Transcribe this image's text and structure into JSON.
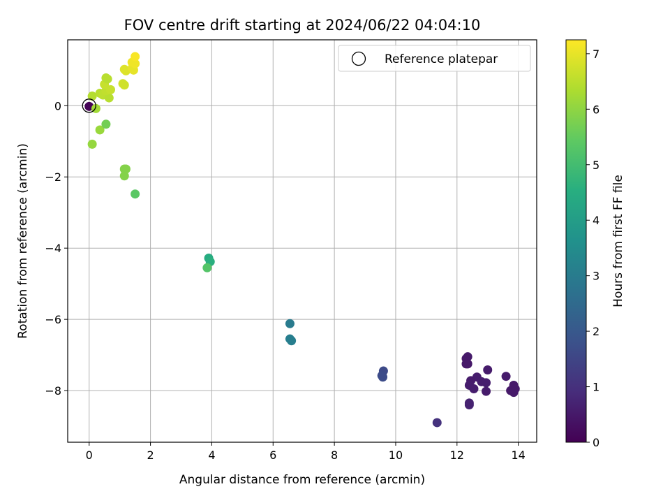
{
  "chart_data": {
    "type": "scatter",
    "title": "FOV centre drift starting at 2024/06/22 04:04:10",
    "xlabel": "Angular distance from reference (arcmin)",
    "ylabel": "Rotation from reference (arcmin)",
    "xlim": [
      -0.7,
      14.6
    ],
    "ylim": [
      -9.45,
      1.85
    ],
    "xticks": [
      0,
      2,
      4,
      6,
      8,
      10,
      12,
      14
    ],
    "yticks": [
      -8,
      -6,
      -4,
      -2,
      0
    ],
    "grid": true,
    "colormap": "viridis",
    "colorbar": {
      "label": "Hours from first FF file",
      "min": 0,
      "max": 7.25,
      "ticks": [
        0,
        1,
        2,
        3,
        4,
        5,
        6,
        7
      ]
    },
    "legend": {
      "position": "top-right",
      "entries": [
        {
          "label": "Reference platepar",
          "marker": "open-circle"
        }
      ]
    },
    "reference_point": {
      "x": 0,
      "y": 0
    },
    "points": [
      {
        "x": 0.0,
        "y": -0.02,
        "c": 0.05
      },
      {
        "x": 12.35,
        "y": -7.05,
        "c": 0.55
      },
      {
        "x": 12.3,
        "y": -7.1,
        "c": 0.5
      },
      {
        "x": 12.35,
        "y": -7.25,
        "c": 0.5
      },
      {
        "x": 12.3,
        "y": -7.25,
        "c": 0.5
      },
      {
        "x": 13.0,
        "y": -7.42,
        "c": 0.55
      },
      {
        "x": 12.65,
        "y": -7.62,
        "c": 0.6
      },
      {
        "x": 12.45,
        "y": -7.72,
        "c": 0.55
      },
      {
        "x": 12.4,
        "y": -7.85,
        "c": 0.6
      },
      {
        "x": 12.55,
        "y": -7.95,
        "c": 0.6
      },
      {
        "x": 12.8,
        "y": -7.75,
        "c": 0.6
      },
      {
        "x": 12.95,
        "y": -7.78,
        "c": 0.6
      },
      {
        "x": 12.95,
        "y": -8.02,
        "c": 0.55
      },
      {
        "x": 13.6,
        "y": -7.6,
        "c": 0.55
      },
      {
        "x": 13.85,
        "y": -7.85,
        "c": 0.5
      },
      {
        "x": 13.75,
        "y": -8.0,
        "c": 0.5
      },
      {
        "x": 13.9,
        "y": -7.95,
        "c": 0.5
      },
      {
        "x": 13.85,
        "y": -8.05,
        "c": 0.5
      },
      {
        "x": 12.4,
        "y": -8.35,
        "c": 0.7
      },
      {
        "x": 12.4,
        "y": -8.4,
        "c": 0.7
      },
      {
        "x": 11.35,
        "y": -8.9,
        "c": 1.05
      },
      {
        "x": 9.6,
        "y": -7.45,
        "c": 1.65
      },
      {
        "x": 9.55,
        "y": -7.58,
        "c": 1.7
      },
      {
        "x": 9.58,
        "y": -7.62,
        "c": 1.7
      },
      {
        "x": 6.55,
        "y": -6.12,
        "c": 3.0
      },
      {
        "x": 6.55,
        "y": -6.55,
        "c": 3.1
      },
      {
        "x": 6.6,
        "y": -6.6,
        "c": 3.1
      },
      {
        "x": 3.9,
        "y": -4.28,
        "c": 4.5
      },
      {
        "x": 3.95,
        "y": -4.38,
        "c": 4.6
      },
      {
        "x": 3.85,
        "y": -4.55,
        "c": 5.3
      },
      {
        "x": 1.5,
        "y": -2.48,
        "c": 5.4
      },
      {
        "x": 1.15,
        "y": -1.78,
        "c": 5.9
      },
      {
        "x": 1.2,
        "y": -1.78,
        "c": 5.9
      },
      {
        "x": 1.15,
        "y": -1.97,
        "c": 5.9
      },
      {
        "x": 0.1,
        "y": -1.08,
        "c": 6.1
      },
      {
        "x": 0.35,
        "y": -0.68,
        "c": 6.15
      },
      {
        "x": 0.55,
        "y": -0.52,
        "c": 5.7
      },
      {
        "x": 0.22,
        "y": -0.08,
        "c": 6.25
      },
      {
        "x": 0.1,
        "y": 0.27,
        "c": 6.45
      },
      {
        "x": 0.35,
        "y": 0.35,
        "c": 6.5
      },
      {
        "x": 0.45,
        "y": 0.3,
        "c": 6.55
      },
      {
        "x": 0.65,
        "y": 0.22,
        "c": 6.5
      },
      {
        "x": 0.55,
        "y": 0.42,
        "c": 6.6
      },
      {
        "x": 0.7,
        "y": 0.45,
        "c": 6.65
      },
      {
        "x": 0.5,
        "y": 0.6,
        "c": 6.65
      },
      {
        "x": 0.55,
        "y": 0.78,
        "c": 6.5
      },
      {
        "x": 0.6,
        "y": 0.75,
        "c": 6.5
      },
      {
        "x": 1.1,
        "y": 0.62,
        "c": 6.75
      },
      {
        "x": 1.15,
        "y": 0.58,
        "c": 6.75
      },
      {
        "x": 1.15,
        "y": 1.02,
        "c": 6.9
      },
      {
        "x": 1.2,
        "y": 0.98,
        "c": 6.9
      },
      {
        "x": 1.4,
        "y": 1.05,
        "c": 7.0
      },
      {
        "x": 1.45,
        "y": 1.0,
        "c": 7.0
      },
      {
        "x": 1.5,
        "y": 1.18,
        "c": 7.1
      },
      {
        "x": 1.4,
        "y": 1.22,
        "c": 7.1
      },
      {
        "x": 1.5,
        "y": 1.38,
        "c": 7.2
      }
    ]
  }
}
